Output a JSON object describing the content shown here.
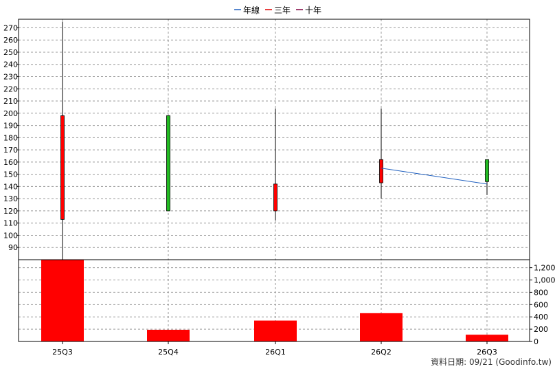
{
  "legend": [
    {
      "label": "年線",
      "color": "#1f5fbf"
    },
    {
      "label": "三年",
      "color": "#e00000"
    },
    {
      "label": "十年",
      "color": "#800040"
    }
  ],
  "footer": "資料日期: 09/21  (Goodinfo.tw)",
  "colors": {
    "up": "#ff0000",
    "down": "#22bb22",
    "volume": "#ff0000",
    "line": "#1f5fbf",
    "grid": "#999999"
  },
  "chart_data": [
    {
      "type": "candlestick",
      "title": "",
      "categories": [
        "25Q3",
        "25Q4",
        "26Q1",
        "26Q2",
        "26Q3"
      ],
      "ylim": [
        80,
        277
      ],
      "yticks": [
        90,
        100,
        110,
        120,
        130,
        140,
        150,
        160,
        170,
        180,
        190,
        200,
        210,
        220,
        230,
        240,
        250,
        260,
        270
      ],
      "grid": true,
      "candles": [
        {
          "x": "25Q3",
          "open": 113,
          "close": 198,
          "high": 275,
          "low": 80
        },
        {
          "x": "25Q4",
          "open": 198,
          "close": 120,
          "high": 198,
          "low": 120
        },
        {
          "x": "26Q1",
          "open": 120,
          "close": 142,
          "high": 204,
          "low": 112
        },
        {
          "x": "26Q2",
          "open": 143,
          "close": 162,
          "high": 204,
          "low": 130
        },
        {
          "x": "26Q3",
          "open": 162,
          "close": 144,
          "high": 162,
          "low": 133
        }
      ],
      "series": [
        {
          "name": "年線",
          "points": [
            {
              "x": "26Q2",
              "y": 155
            },
            {
              "x": "26Q3",
              "y": 142
            }
          ]
        }
      ]
    },
    {
      "type": "bar",
      "categories": [
        "25Q3",
        "25Q4",
        "26Q1",
        "26Q2",
        "26Q3"
      ],
      "values": [
        1330,
        190,
        340,
        460,
        110
      ],
      "ylim": [
        0,
        1330
      ],
      "yticks": [
        0,
        200,
        400,
        600,
        800,
        1000,
        1200
      ],
      "ytick_labels": [
        "0",
        "200",
        "400",
        "600",
        "800",
        "1,000",
        "1,200"
      ],
      "grid": true
    }
  ]
}
